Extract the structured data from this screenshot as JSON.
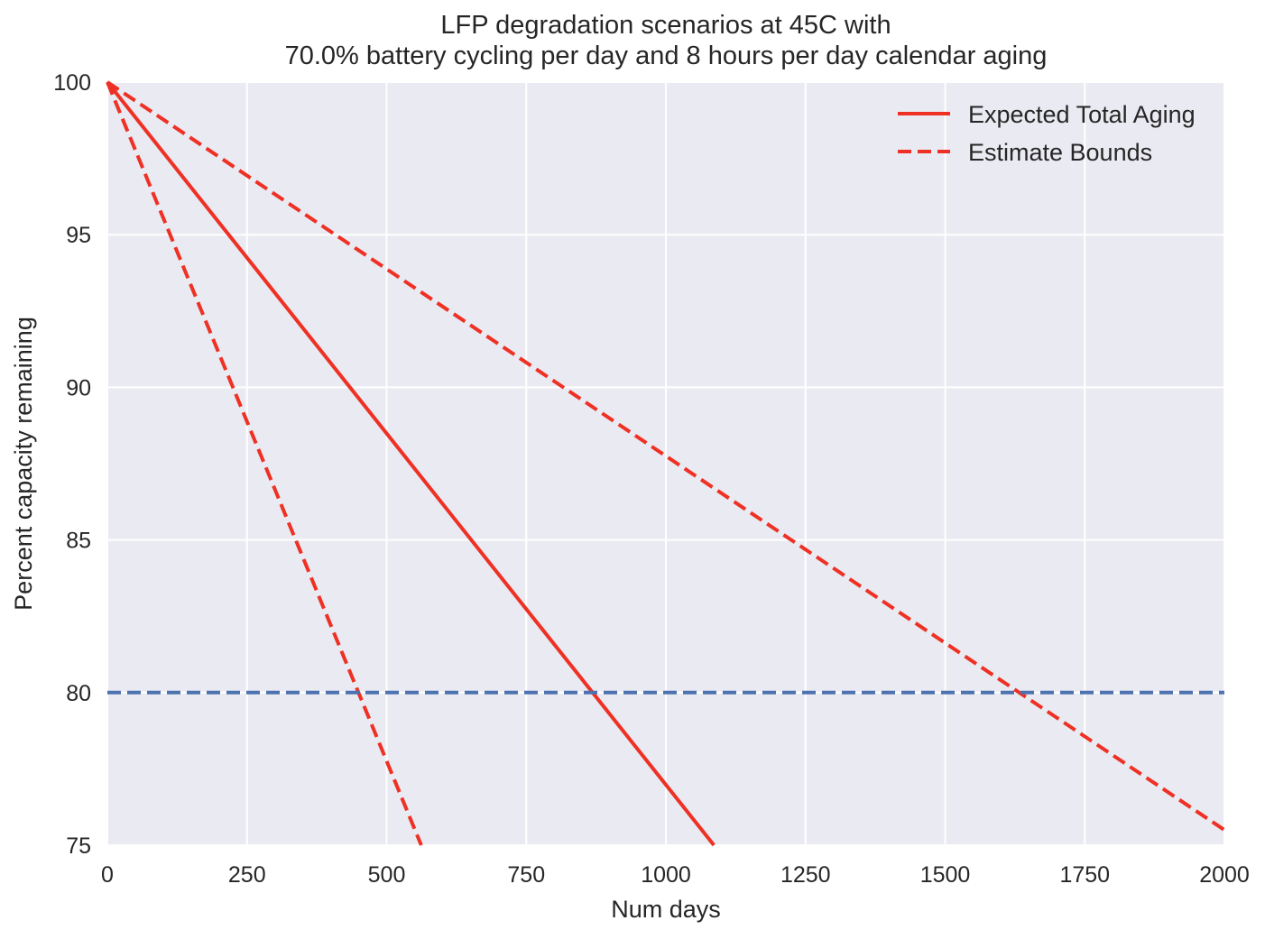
{
  "chart_data": {
    "type": "line",
    "title_line1": "LFP degradation scenarios at 45C with",
    "title_line2": "70.0% battery cycling per day and 8 hours per day calendar aging",
    "xlabel": "Num days",
    "ylabel": "Percent capacity remaining",
    "xlim": [
      0,
      2000
    ],
    "ylim": [
      75,
      100
    ],
    "xticks": [
      0,
      250,
      500,
      750,
      1000,
      1250,
      1500,
      1750,
      2000
    ],
    "yticks": [
      75,
      80,
      85,
      90,
      95,
      100
    ],
    "grid": true,
    "legend_position": "top-right",
    "legend": [
      "Expected Total Aging",
      "Estimate Bounds"
    ],
    "series": [
      {
        "name": "Expected Total Aging",
        "style": "solid",
        "color": "#ee3124",
        "x": [
          0,
          1086
        ],
        "y": [
          100,
          75
        ]
      },
      {
        "name": "Estimate Bounds (lower)",
        "style": "dashed",
        "color": "#ee3124",
        "x": [
          0,
          562
        ],
        "y": [
          100,
          75
        ]
      },
      {
        "name": "Estimate Bounds (upper)",
        "style": "dashed",
        "color": "#ee3124",
        "x": [
          0,
          2000
        ],
        "y": [
          100,
          75.5
        ]
      },
      {
        "name": "80% threshold",
        "style": "dashed",
        "color": "#4c72b0",
        "x": [
          0,
          2000
        ],
        "y": [
          80,
          80
        ]
      }
    ]
  }
}
